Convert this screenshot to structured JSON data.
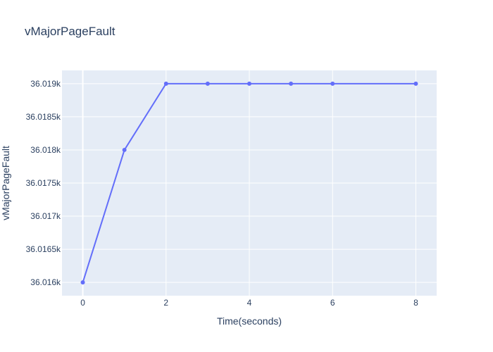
{
  "chart_data": {
    "type": "line",
    "title": "vMajorPageFault",
    "xlabel": "Time(seconds)",
    "ylabel": "vMajorPageFault",
    "x": [
      0,
      1,
      2,
      3,
      4,
      5,
      6,
      8
    ],
    "series": [
      {
        "values": [
          36016,
          36018,
          36019,
          36019,
          36019,
          36019,
          36019,
          36019
        ]
      }
    ],
    "xlim": [
      -0.5,
      8.5
    ],
    "ylim": [
      36015.8,
      36019.2
    ],
    "xticks": [
      0,
      2,
      4,
      6,
      8
    ],
    "xtick_labels": [
      "0",
      "2",
      "4",
      "6",
      "8"
    ],
    "yticks": [
      36016,
      36016.5,
      36017,
      36017.5,
      36018,
      36018.5,
      36019
    ],
    "ytick_labels": [
      "36.016k",
      "36.0165k",
      "36.017k",
      "36.0175k",
      "36.018k",
      "36.0185k",
      "36.019k"
    ],
    "grid": true,
    "colors": {
      "line": "#636efa",
      "plot_bg": "#e5ecf6",
      "grid": "#ffffff",
      "text": "#2a3f5f"
    }
  }
}
